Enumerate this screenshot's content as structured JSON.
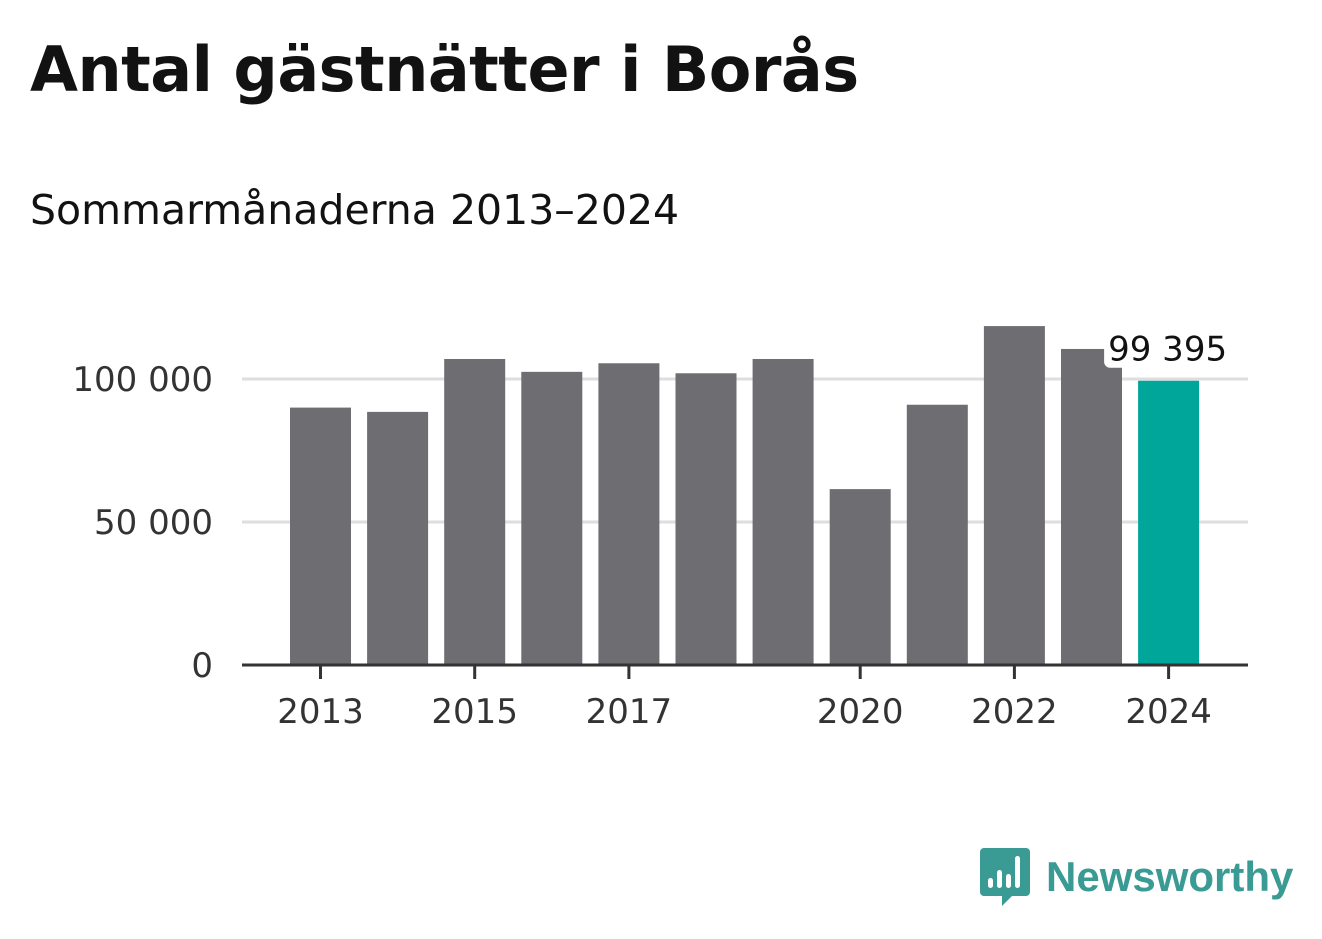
{
  "title": "Antal gästnätter i Borås",
  "subtitle": "Sommarmånaderna 2013–2024",
  "chart_data": {
    "type": "bar",
    "categories": [
      "2013",
      "2014",
      "2015",
      "2016",
      "2017",
      "2018",
      "2019",
      "2020",
      "2021",
      "2022",
      "2023",
      "2024"
    ],
    "values": [
      90000,
      88500,
      107000,
      102500,
      105500,
      102000,
      107000,
      61500,
      91000,
      118500,
      110500,
      99395
    ],
    "x_tick_labels": [
      "2013",
      "2015",
      "2017",
      "2020",
      "2022",
      "2024"
    ],
    "y_ticks": [
      0,
      50000,
      100000
    ],
    "y_tick_labels": [
      "0",
      "50 000",
      "100 000"
    ],
    "ylim": [
      0,
      125000
    ],
    "grid": true,
    "highlight": {
      "category": "2024",
      "label": "99 395"
    },
    "colors": {
      "bar": "#6e6d72",
      "highlight": "#00a69a",
      "grid": "#dedede",
      "axis": "#333333"
    }
  },
  "brand": {
    "name": "Newsworthy",
    "icon": "newsworthy-logo-icon",
    "color": "#3a9a94"
  }
}
